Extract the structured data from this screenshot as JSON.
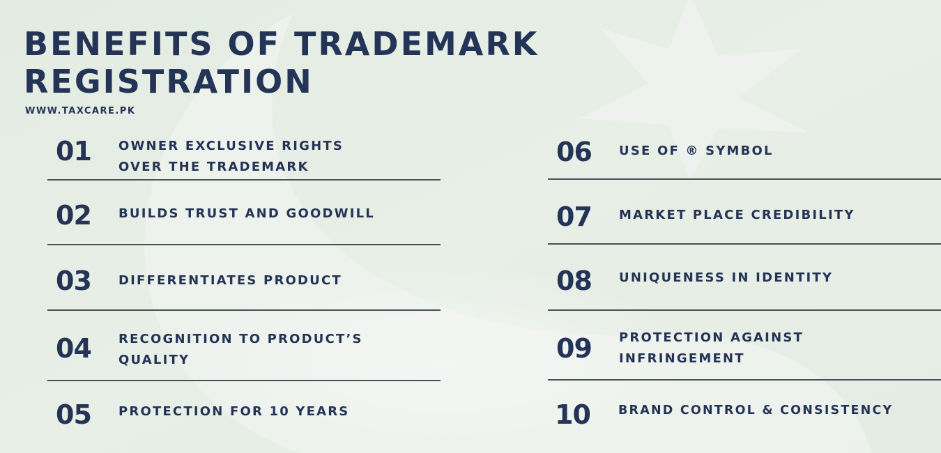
{
  "page": {
    "title_line1": "BENEFITS OF TRADEMARK",
    "title_line2": "REGISTRATION",
    "website": "WWW.TAXCARE.PK"
  },
  "benefits": [
    {
      "number": "01",
      "line1": "OWNER EXCLUSIVE RIGHTS",
      "line2": "OVER THE TRADEMARK"
    },
    {
      "number": "02",
      "line1": "BUILDS TRUST AND GOODWILL",
      "line2": ""
    },
    {
      "number": "03",
      "line1": "DIFFERENTIATES PRODUCT",
      "line2": ""
    },
    {
      "number": "04",
      "line1": "RECOGNITION TO PRODUCT’S",
      "line2": "QUALITY"
    },
    {
      "number": "05",
      "line1": "PROTECTION FOR 10 YEARS",
      "line2": ""
    },
    {
      "number": "06",
      "line1": "USE OF ® SYMBOL",
      "line2": ""
    },
    {
      "number": "07",
      "line1": "MARKET PLACE CREDIBILITY",
      "line2": ""
    },
    {
      "number": "08",
      "line1": "UNIQUENESS IN IDENTITY",
      "line2": ""
    },
    {
      "number": "09",
      "line1": "PROTECTION AGAINST",
      "line2": "INFRINGEMENT"
    },
    {
      "number": "10",
      "line1": "BRAND CONTROL & CONSISTENCY",
      "line2": ""
    }
  ],
  "colors": {
    "text": "#243456",
    "divider": "#4a5058",
    "background": "#e9f0e8"
  }
}
